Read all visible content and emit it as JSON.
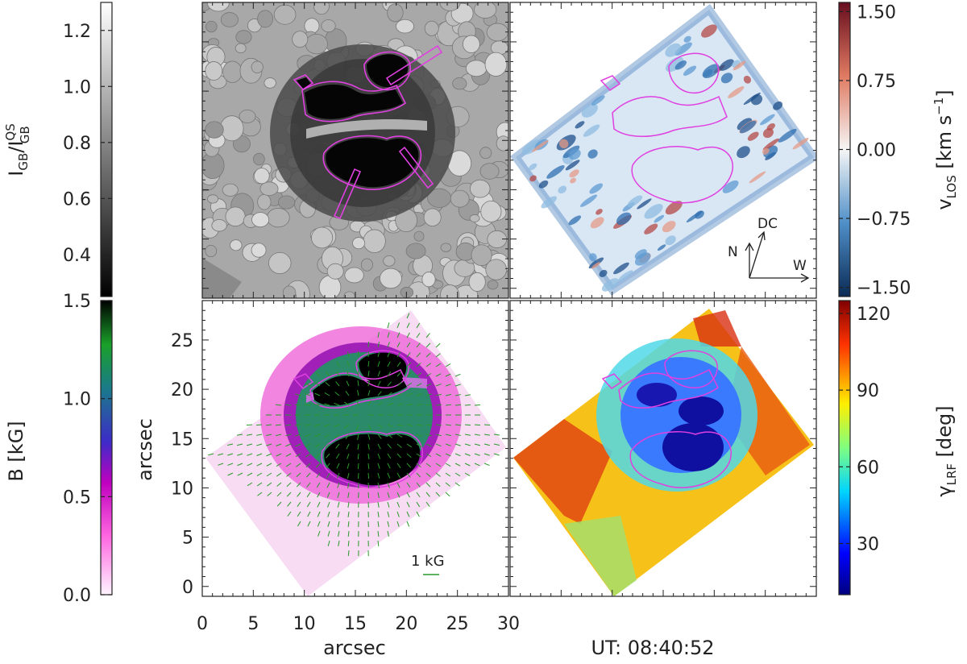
{
  "figure": {
    "ut_label": "UT: 08:40:52",
    "x_axis_label": "arcsec",
    "y_axis_label": "arcsec",
    "vector_scale_label": "1 kG",
    "compass": {
      "north": "N",
      "disk_center": "DC",
      "west": "W"
    }
  },
  "colorbars": {
    "intensity": {
      "label_main": "I",
      "label_sub": "GB",
      "label_sep": "/I",
      "label_sup": "QS",
      "label_sub2": "GB",
      "ticks": [
        "1.2",
        "1.0",
        "0.8",
        "0.6",
        "0.4"
      ],
      "tick_values": [
        1.2,
        1.0,
        0.8,
        0.6,
        0.4
      ],
      "range": [
        0.25,
        1.3
      ]
    },
    "field": {
      "label": "B [kG]",
      "ticks": [
        "1.5",
        "1.0",
        "0.5",
        "0.0"
      ],
      "tick_values": [
        1.5,
        1.0,
        0.5,
        0.0
      ],
      "range": [
        0.0,
        1.5
      ]
    },
    "velocity": {
      "label_main": "v",
      "label_sub": "LOS",
      "label_unit_a": " [km s",
      "label_sup": "−1",
      "label_unit_b": "]",
      "ticks": [
        "1.50",
        "0.75",
        "0.00",
        "−0.75",
        "−1.50"
      ],
      "tick_values": [
        1.5,
        0.75,
        0.0,
        -0.75,
        -1.5
      ],
      "range": [
        -1.6,
        1.6
      ]
    },
    "inclination": {
      "label_main": "γ",
      "label_sub": "LRF",
      "label_unit": " [deg]",
      "ticks": [
        "120",
        "90",
        "60",
        "30"
      ],
      "tick_values": [
        120,
        90,
        60,
        30
      ],
      "range": [
        10,
        125
      ]
    }
  },
  "axes": {
    "x_ticks": [
      "0",
      "5",
      "10",
      "15",
      "20",
      "25",
      "30"
    ],
    "x_values": [
      0,
      5,
      10,
      15,
      20,
      25,
      30
    ],
    "y_ticks": [
      "0",
      "5",
      "10",
      "15",
      "20",
      "25"
    ],
    "y_values": [
      0,
      5,
      10,
      15,
      20,
      25
    ],
    "x_range": [
      0,
      30
    ],
    "y_range": [
      -1,
      29
    ]
  }
}
